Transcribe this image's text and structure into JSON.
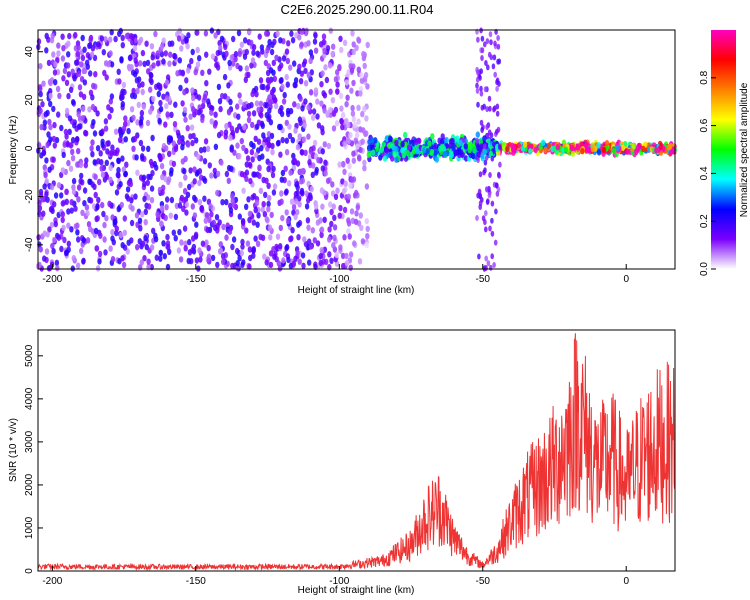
{
  "figure": {
    "title": "C2E6.2025.290.00.11.R04"
  },
  "chart_data": [
    {
      "type": "heatmap",
      "title": "C2E6.2025.290.00.11.R04",
      "xlabel": "Height of straight line (km)",
      "ylabel": "Frequency (Hz)",
      "xlim": [
        -205,
        17
      ],
      "ylim": [
        -50,
        49
      ],
      "x_ticks": [
        -200,
        -150,
        -100,
        -50,
        0
      ],
      "y_ticks": [
        -40,
        -20,
        0,
        20,
        40
      ],
      "colorbar": {
        "label": "Normalized spectral amplitude",
        "range": [
          0,
          1
        ],
        "ticks": [
          0.0,
          0.2,
          0.4,
          0.6,
          0.8
        ],
        "colormap": [
          "#ffffff",
          "#7a00ff",
          "#0000ff",
          "#00ffff",
          "#00ff00",
          "#ffff00",
          "#ff8000",
          "#ff0000",
          "#ff00c0"
        ]
      },
      "regions": [
        {
          "x_range": [
            -205,
            -90
          ],
          "description_level": 0.15,
          "freq_spread": [
            -50,
            49
          ]
        },
        {
          "x_range": [
            -90,
            -45
          ],
          "description_level": 0.35,
          "freq_spread": [
            -8,
            6
          ]
        },
        {
          "x_range": [
            -45,
            17
          ],
          "description_level": 0.85,
          "freq_spread": [
            -3,
            3
          ]
        }
      ]
    },
    {
      "type": "line",
      "xlabel": "Height of straight line (km)",
      "ylabel": "SNR (10 * v/v)",
      "xlim": [
        -205,
        17
      ],
      "ylim": [
        0,
        5600
      ],
      "x_ticks": [
        -200,
        -150,
        -100,
        -50,
        0
      ],
      "y_ticks": [
        0,
        1000,
        2000,
        3000,
        4000,
        5000
      ],
      "color": "#ee3333",
      "envelope_x": [
        -205,
        -150,
        -100,
        -85,
        -75,
        -70,
        -65,
        -60,
        -55,
        -50,
        -45,
        -40,
        -35,
        -30,
        -25,
        -20,
        -17,
        -10,
        -5,
        0,
        5,
        10,
        17
      ],
      "envelope_y": [
        150,
        140,
        150,
        350,
        900,
        1800,
        2200,
        1100,
        500,
        200,
        700,
        1700,
        2500,
        3000,
        3600,
        4500,
        5500,
        3500,
        3900,
        3000,
        3800,
        4300,
        4500
      ]
    }
  ]
}
